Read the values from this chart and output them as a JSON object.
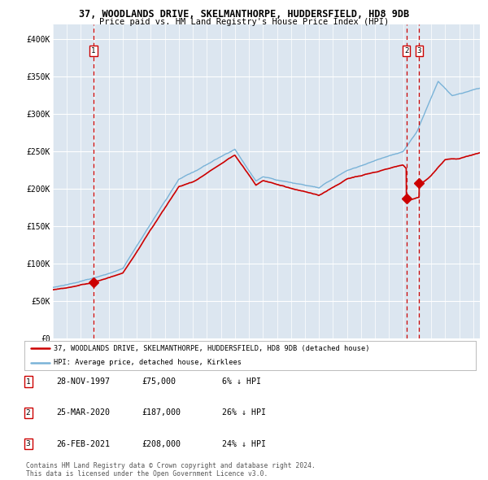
{
  "title1": "37, WOODLANDS DRIVE, SKELMANTHORPE, HUDDERSFIELD, HD8 9DB",
  "title2": "Price paid vs. HM Land Registry's House Price Index (HPI)",
  "bg_color": "#dce6f0",
  "hpi_color": "#7ab3d8",
  "sale_color": "#cc0000",
  "ylim": [
    0,
    420000
  ],
  "yticks": [
    0,
    50000,
    100000,
    150000,
    200000,
    250000,
    300000,
    350000,
    400000
  ],
  "ytick_labels": [
    "£0",
    "£50K",
    "£100K",
    "£150K",
    "£200K",
    "£250K",
    "£300K",
    "£350K",
    "£400K"
  ],
  "sales": [
    {
      "date": 1997.91,
      "price": 75000,
      "label": "1"
    },
    {
      "date": 2020.23,
      "price": 187000,
      "label": "2"
    },
    {
      "date": 2021.15,
      "price": 208000,
      "label": "3"
    }
  ],
  "legend_sale_label": "37, WOODLANDS DRIVE, SKELMANTHORPE, HUDDERSFIELD, HD8 9DB (detached house)",
  "legend_hpi_label": "HPI: Average price, detached house, Kirklees",
  "table_rows": [
    {
      "num": "1",
      "date": "28-NOV-1997",
      "price": "£75,000",
      "note": "6% ↓ HPI"
    },
    {
      "num": "2",
      "date": "25-MAR-2020",
      "price": "£187,000",
      "note": "26% ↓ HPI"
    },
    {
      "num": "3",
      "date": "26-FEB-2021",
      "price": "£208,000",
      "note": "24% ↓ HPI"
    }
  ],
  "footer": "Contains HM Land Registry data © Crown copyright and database right 2024.\nThis data is licensed under the Open Government Licence v3.0.",
  "xstart": 1995.0,
  "xend": 2025.5
}
